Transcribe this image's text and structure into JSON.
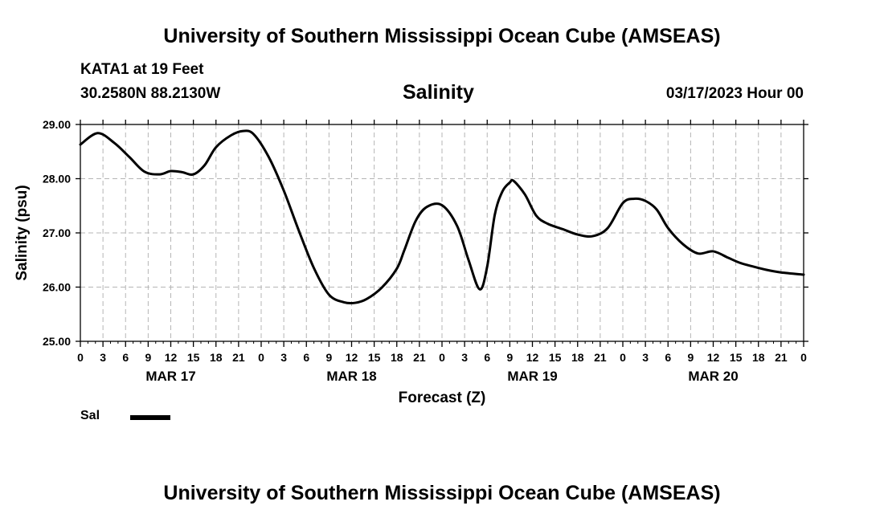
{
  "header": {
    "top_title": "University of Southern Mississippi Ocean Cube (AMSEAS)",
    "station": "KATA1 at 19 Feet",
    "coords": "30.2580N  88.2130W",
    "chart_title": "Salinity",
    "datetime": "03/17/2023 Hour 00",
    "bottom_title": "University of Southern Mississippi Ocean Cube (AMSEAS)"
  },
  "legend": {
    "label": "Sal",
    "color": "#000000"
  },
  "chart_data": {
    "type": "line",
    "title": "Salinity",
    "xlabel": "Forecast (Z)",
    "ylabel": "Salinity (psu)",
    "xlim_hours": [
      0,
      96
    ],
    "ylim": [
      25.0,
      29.0
    ],
    "grid": true,
    "y_ticks": [
      "25.00",
      "26.00",
      "27.00",
      "28.00",
      "29.00"
    ],
    "x_tick_labels": [
      "0",
      "3",
      "6",
      "9",
      "12",
      "15",
      "18",
      "21",
      "0",
      "3",
      "6",
      "9",
      "12",
      "15",
      "18",
      "21",
      "0",
      "3",
      "6",
      "9",
      "12",
      "15",
      "18",
      "21",
      "0",
      "3",
      "6",
      "9",
      "12",
      "15",
      "18",
      "21",
      "0"
    ],
    "day_labels": [
      {
        "hour": 12,
        "label": "MAR 17"
      },
      {
        "hour": 36,
        "label": "MAR 18"
      },
      {
        "hour": 60,
        "label": "MAR 19"
      },
      {
        "hour": 84,
        "label": "MAR 20"
      }
    ],
    "series": [
      {
        "name": "Sal",
        "hours": [
          0,
          2.3,
          4.5,
          6.5,
          8.5,
          10.5,
          12,
          13.5,
          15,
          16.5,
          18,
          20,
          21.6,
          23,
          25,
          27,
          29,
          31,
          33,
          35,
          36.5,
          38,
          40,
          42,
          43,
          44.5,
          46,
          48,
          50,
          51.5,
          53,
          54,
          55,
          56,
          57,
          57.5,
          59,
          60.5,
          62,
          64,
          66,
          68,
          70,
          72,
          73.5,
          75,
          76.5,
          78,
          80,
          82,
          84,
          86,
          87.5,
          89,
          91,
          93,
          96
        ],
        "values": [
          28.63,
          28.84,
          28.66,
          28.4,
          28.13,
          28.08,
          28.14,
          28.12,
          28.08,
          28.25,
          28.58,
          28.8,
          28.88,
          28.82,
          28.4,
          27.78,
          27.04,
          26.35,
          25.86,
          25.72,
          25.71,
          25.78,
          25.99,
          26.34,
          26.68,
          27.22,
          27.48,
          27.51,
          27.13,
          26.51,
          25.96,
          26.38,
          27.33,
          27.76,
          27.93,
          27.96,
          27.71,
          27.32,
          27.17,
          27.07,
          26.97,
          26.94,
          27.09,
          27.55,
          27.63,
          27.59,
          27.43,
          27.09,
          26.79,
          26.62,
          26.66,
          26.54,
          26.45,
          26.39,
          26.32,
          26.27,
          26.23
        ]
      }
    ]
  }
}
